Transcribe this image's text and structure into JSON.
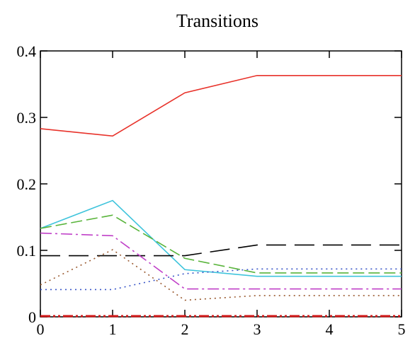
{
  "chart_data": {
    "type": "line",
    "title": "Transitions",
    "xlabel": "",
    "ylabel": "",
    "xlim": [
      0,
      5
    ],
    "ylim": [
      0,
      0.4
    ],
    "x_ticks": [
      "0",
      "1",
      "2",
      "3",
      "4",
      "5"
    ],
    "y_ticks": [
      "0",
      "0.1",
      "0.2",
      "0.3",
      "0.4"
    ],
    "grid": false,
    "legend": "none",
    "x": [
      0,
      1,
      2,
      3,
      4,
      5
    ],
    "series": [
      {
        "color": "#e8322a",
        "style": "solid",
        "values": [
          0.283,
          0.272,
          0.337,
          0.363,
          0.363,
          0.363
        ]
      },
      {
        "color": "#3fc4dc",
        "style": "solid",
        "values": [
          0.133,
          0.175,
          0.071,
          0.061,
          0.061,
          0.061
        ]
      },
      {
        "color": "#58b43a",
        "style": "dashed",
        "values": [
          0.133,
          0.153,
          0.088,
          0.066,
          0.066,
          0.066
        ]
      },
      {
        "color": "#000000",
        "style": "long-dash",
        "values": [
          0.092,
          0.092,
          0.092,
          0.108,
          0.108,
          0.108
        ]
      },
      {
        "color": "#c040c8",
        "style": "dash-dot",
        "values": [
          0.126,
          0.122,
          0.042,
          0.042,
          0.042,
          0.042
        ]
      },
      {
        "color": "#3a56c8",
        "style": "dotted",
        "values": [
          0.041,
          0.041,
          0.065,
          0.072,
          0.072,
          0.072
        ]
      },
      {
        "color": "#9a5a30",
        "style": "dotted",
        "values": [
          0.048,
          0.101,
          0.025,
          0.032,
          0.032,
          0.032
        ]
      },
      {
        "color": "#d01818",
        "style": "dash-dot-dot",
        "values": [
          0.001,
          0.001,
          0.001,
          0.001,
          0.001,
          0.001
        ]
      }
    ]
  }
}
